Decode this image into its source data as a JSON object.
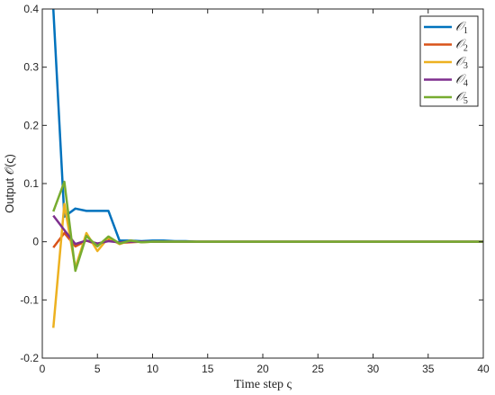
{
  "chart_data": {
    "type": "line",
    "xlabel": "Time step ς",
    "ylabel": "Output 𝒪(ς)",
    "xlim": [
      0,
      40
    ],
    "ylim": [
      -0.2,
      0.4
    ],
    "xticks": [
      "0",
      "5",
      "10",
      "15",
      "20",
      "25",
      "30",
      "35",
      "40"
    ],
    "yticks": [
      "-0.2",
      "-0.1",
      "0",
      "0.1",
      "0.2",
      "0.3",
      "0.4"
    ],
    "grid": false,
    "legend_position": "top-right",
    "x": [
      1,
      2,
      3,
      4,
      5,
      6,
      7,
      8,
      9,
      10,
      11,
      12,
      13,
      14,
      15,
      16,
      17,
      18,
      19,
      20,
      21,
      22,
      23,
      24,
      25,
      26,
      27,
      28,
      29,
      30,
      31,
      32,
      33,
      34,
      35,
      36,
      37,
      38,
      39,
      40
    ],
    "series": [
      {
        "name": "𝒪1",
        "base": "𝒪",
        "sub": "1",
        "color": "#0072BD",
        "values": [
          0.4,
          0.043,
          0.057,
          0.053,
          0.053,
          0.053,
          0.002,
          0.002,
          0.001,
          0.002,
          0.002,
          0.001,
          0.001,
          0,
          0,
          0,
          0,
          0,
          0,
          0,
          0,
          0,
          0,
          0,
          0,
          0,
          0,
          0,
          0,
          0,
          0,
          0,
          0,
          0,
          0,
          0,
          0,
          0,
          0,
          0
        ]
      },
      {
        "name": "𝒪2",
        "base": "𝒪",
        "sub": "2",
        "color": "#D95319",
        "values": [
          -0.01,
          0.015,
          -0.008,
          0.002,
          -0.005,
          0.003,
          -0.002,
          -0.001,
          0,
          0,
          0,
          0,
          0,
          0,
          0,
          0,
          0,
          0,
          0,
          0,
          0,
          0,
          0,
          0,
          0,
          0,
          0,
          0,
          0,
          0,
          0,
          0,
          0,
          0,
          0,
          0,
          0,
          0,
          0,
          0
        ]
      },
      {
        "name": "𝒪3",
        "base": "𝒪",
        "sub": "3",
        "color": "#EDB120",
        "values": [
          -0.148,
          0.065,
          -0.045,
          0.015,
          -0.016,
          0.007,
          -0.004,
          0.002,
          -0.001,
          0,
          0,
          0,
          0,
          0,
          0,
          0,
          0,
          0,
          0,
          0,
          0,
          0,
          0,
          0,
          0,
          0,
          0,
          0,
          0,
          0,
          0,
          0,
          0,
          0,
          0,
          0,
          0,
          0,
          0,
          0
        ]
      },
      {
        "name": "𝒪4",
        "base": "𝒪",
        "sub": "4",
        "color": "#7E2F8E",
        "values": [
          0.045,
          0.02,
          -0.004,
          0.002,
          -0.003,
          0.001,
          -0.001,
          0,
          0,
          0,
          0,
          0,
          0,
          0,
          0,
          0,
          0,
          0,
          0,
          0,
          0,
          0,
          0,
          0,
          0,
          0,
          0,
          0,
          0,
          0,
          0,
          0,
          0,
          0,
          0,
          0,
          0,
          0,
          0,
          0
        ]
      },
      {
        "name": "𝒪5",
        "base": "𝒪",
        "sub": "5",
        "color": "#77AC30",
        "values": [
          0.052,
          0.103,
          -0.05,
          0.01,
          -0.008,
          0.009,
          -0.003,
          0.002,
          -0.001,
          0,
          0,
          0,
          0,
          0,
          0,
          0,
          0,
          0,
          0,
          0,
          0,
          0,
          0,
          0,
          0,
          0,
          0,
          0,
          0,
          0,
          0,
          0,
          0,
          0,
          0,
          0,
          0,
          0,
          0,
          0
        ]
      }
    ]
  }
}
